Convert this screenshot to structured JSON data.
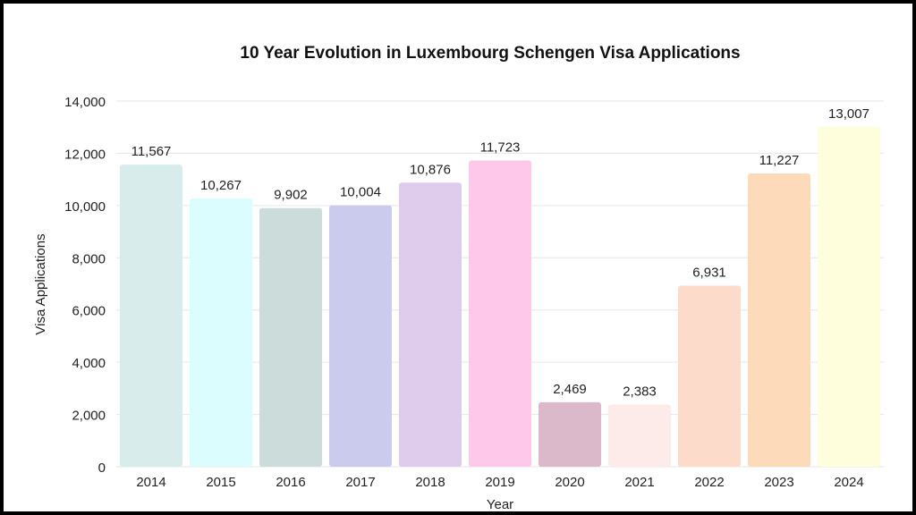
{
  "chart_data": {
    "type": "bar",
    "title": "10 Year Evolution in Luxembourg Schengen Visa Applications",
    "xlabel": "Year",
    "ylabel": "Visa Applications",
    "categories": [
      "2014",
      "2015",
      "2016",
      "2017",
      "2018",
      "2019",
      "2020",
      "2021",
      "2022",
      "2023",
      "2024"
    ],
    "values": [
      11567,
      10267,
      9902,
      10004,
      10876,
      11723,
      2469,
      2383,
      6931,
      11227,
      13007
    ],
    "data_labels": [
      "11,567",
      "10,267",
      "9,902",
      "10,004",
      "10,876",
      "11,723",
      "2,469",
      "2,383",
      "6,931",
      "11,227",
      "13,007"
    ],
    "colors": [
      "#d9ecec",
      "#dcfdfd",
      "#cbdcdb",
      "#cbcbee",
      "#dfcbec",
      "#fdc8ea",
      "#dcb9ca",
      "#fdebea",
      "#fddbcb",
      "#fddbba",
      "#fefddc"
    ],
    "ylim": [
      0,
      14000
    ],
    "yticks": [
      0,
      2000,
      4000,
      6000,
      8000,
      10000,
      12000,
      14000
    ],
    "ytick_labels": [
      "0",
      "2,000",
      "4,000",
      "6,000",
      "8,000",
      "10,000",
      "12,000",
      "14,000"
    ],
    "grid": true,
    "legend": "none"
  }
}
